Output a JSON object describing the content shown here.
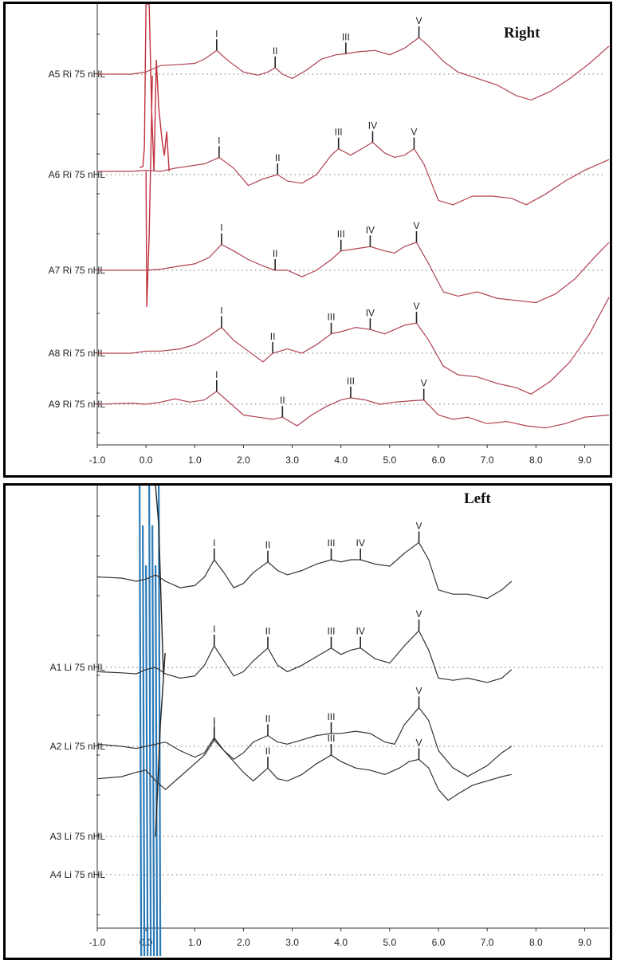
{
  "chart_data": [
    {
      "type": "line",
      "title": "Right",
      "xlim": [
        -1.0,
        9.5
      ],
      "xticks": [
        "-1.0",
        "0.0",
        "1.0",
        "2.0",
        "3.0",
        "4.0",
        "5.0",
        "6.0",
        "7.0",
        "8.0",
        "9.0"
      ],
      "trace_color": "#b04050",
      "artifact_color": "#c0303c",
      "series": [
        {
          "name": "A5 Ri 75 nHL",
          "x": [
            -1.0,
            -0.3,
            0.0,
            0.3,
            0.7,
            1.0,
            1.2,
            1.45,
            1.7,
            2.0,
            2.3,
            2.5,
            2.65,
            2.8,
            3.0,
            3.3,
            3.6,
            3.9,
            4.1,
            4.4,
            4.7,
            5.0,
            5.3,
            5.6,
            5.8,
            6.1,
            6.4,
            6.8,
            7.2,
            7.6,
            7.9,
            8.3,
            8.7,
            9.1,
            9.5
          ],
          "y": [
            0.0,
            0.0,
            0.1,
            0.4,
            0.45,
            0.5,
            0.7,
            1.1,
            0.6,
            0.1,
            -0.05,
            0.1,
            0.3,
            0.0,
            -0.2,
            0.2,
            0.7,
            0.9,
            0.95,
            1.05,
            1.1,
            0.9,
            1.2,
            1.7,
            1.3,
            0.6,
            0.1,
            -0.2,
            -0.5,
            -1.0,
            -1.2,
            -0.8,
            -0.2,
            0.5,
            1.3
          ]
        },
        {
          "name": "A6 Ri 75 nHL",
          "x": [
            -1.0,
            -0.3,
            0.0,
            0.3,
            0.6,
            0.9,
            1.2,
            1.5,
            1.8,
            2.1,
            2.4,
            2.7,
            2.9,
            3.2,
            3.5,
            3.8,
            3.95,
            4.2,
            4.5,
            4.65,
            4.9,
            5.1,
            5.3,
            5.5,
            5.7,
            6.0,
            6.3,
            6.7,
            7.1,
            7.5,
            7.8,
            8.2,
            8.6,
            9.0,
            9.5
          ],
          "y": [
            0.15,
            0.15,
            0.2,
            0.15,
            0.3,
            0.4,
            0.5,
            0.8,
            0.3,
            -0.5,
            -0.2,
            0.0,
            -0.3,
            -0.4,
            0.0,
            0.9,
            1.2,
            0.9,
            1.3,
            1.5,
            1.0,
            0.8,
            0.9,
            1.2,
            0.5,
            -1.2,
            -1.4,
            -1.0,
            -1.0,
            -1.1,
            -1.4,
            -0.9,
            -0.3,
            0.2,
            0.7
          ]
        },
        {
          "name": "A7 Ri 75 nHL",
          "x": [
            -1.0,
            -0.3,
            0.0,
            0.3,
            0.7,
            1.0,
            1.3,
            1.55,
            1.8,
            2.1,
            2.4,
            2.65,
            2.9,
            3.2,
            3.5,
            3.8,
            4.0,
            4.3,
            4.6,
            4.9,
            5.1,
            5.3,
            5.55,
            5.8,
            6.1,
            6.4,
            6.8,
            7.2,
            7.6,
            8.0,
            8.4,
            8.8,
            9.2,
            9.5
          ],
          "y": [
            0.0,
            0.0,
            0.0,
            0.05,
            0.2,
            0.3,
            0.6,
            1.2,
            0.9,
            0.5,
            0.2,
            0.0,
            0.0,
            -0.3,
            0.0,
            0.5,
            0.9,
            1.0,
            1.1,
            0.9,
            0.8,
            1.1,
            1.3,
            0.3,
            -1.0,
            -1.2,
            -1.0,
            -1.3,
            -1.4,
            -1.5,
            -1.1,
            -0.4,
            0.6,
            1.3
          ]
        },
        {
          "name": "A8 Ri 75 nHL",
          "x": [
            -1.0,
            -0.3,
            0.0,
            0.3,
            0.7,
            1.0,
            1.3,
            1.55,
            1.8,
            2.1,
            2.4,
            2.6,
            2.9,
            3.2,
            3.5,
            3.8,
            4.0,
            4.3,
            4.6,
            4.9,
            5.1,
            5.3,
            5.55,
            5.8,
            6.1,
            6.4,
            6.8,
            7.2,
            7.6,
            7.9,
            8.3,
            8.7,
            9.1,
            9.5
          ],
          "y": [
            0.0,
            0.0,
            0.1,
            0.1,
            0.2,
            0.4,
            0.8,
            1.2,
            0.6,
            0.1,
            -0.4,
            0.0,
            0.2,
            0.0,
            0.4,
            0.9,
            1.0,
            1.2,
            1.1,
            0.9,
            1.1,
            1.3,
            1.4,
            0.6,
            -0.6,
            -1.0,
            -1.1,
            -1.4,
            -1.6,
            -1.9,
            -1.3,
            -0.4,
            0.9,
            2.6
          ]
        },
        {
          "name": "A9 Ri 75 nHL",
          "x": [
            -1.0,
            -0.3,
            0.0,
            0.3,
            0.6,
            0.9,
            1.2,
            1.45,
            1.7,
            2.0,
            2.3,
            2.6,
            2.8,
            3.1,
            3.4,
            3.7,
            4.0,
            4.2,
            4.5,
            4.8,
            5.1,
            5.4,
            5.7,
            6.0,
            6.3,
            6.6,
            7.0,
            7.4,
            7.8,
            8.2,
            8.6,
            9.0,
            9.5
          ],
          "y": [
            0.0,
            0.05,
            0.0,
            0.1,
            0.25,
            0.1,
            0.2,
            0.6,
            0.1,
            -0.5,
            -0.6,
            -0.7,
            -0.6,
            -1.0,
            -0.5,
            -0.1,
            0.2,
            0.3,
            0.2,
            0.0,
            0.1,
            0.15,
            0.2,
            -0.5,
            -0.7,
            -0.6,
            -0.9,
            -0.8,
            -1.0,
            -1.1,
            -0.9,
            -0.6,
            -0.5
          ]
        }
      ],
      "peaks": [
        {
          "series": 0,
          "labels": [
            [
              "I",
              1.45
            ],
            [
              "II",
              2.65
            ],
            [
              "III",
              4.1
            ],
            [
              "V",
              5.6
            ]
          ]
        },
        {
          "series": 1,
          "labels": [
            [
              "I",
              1.5
            ],
            [
              "II",
              2.7
            ],
            [
              "III",
              3.95
            ],
            [
              "IV",
              4.65
            ],
            [
              "V",
              5.5
            ]
          ]
        },
        {
          "series": 2,
          "labels": [
            [
              "I",
              1.55
            ],
            [
              "II",
              2.65
            ],
            [
              "III",
              4.0
            ],
            [
              "IV",
              4.6
            ],
            [
              "V",
              5.55
            ]
          ]
        },
        {
          "series": 3,
          "labels": [
            [
              "I",
              1.55
            ],
            [
              "II",
              2.6
            ],
            [
              "III",
              3.8
            ],
            [
              "IV",
              4.6
            ],
            [
              "V",
              5.55
            ]
          ]
        },
        {
          "series": 4,
          "labels": [
            [
              "I",
              1.45
            ],
            [
              "II",
              2.8
            ],
            [
              "III",
              4.2
            ],
            [
              "V",
              5.7
            ]
          ]
        }
      ]
    },
    {
      "type": "line",
      "title": "Left",
      "xlim": [
        -1.0,
        9.5
      ],
      "xticks": [
        "-1.0",
        "0.0",
        "1.0",
        "2.0",
        "3.0",
        "4.0",
        "5.0",
        "6.0",
        "7.0",
        "8.0",
        "9.0"
      ],
      "trace_color": "#333333",
      "artifact_color": "#2a7ab8",
      "series": [
        {
          "name": "",
          "x": [
            -1.0,
            -0.5,
            -0.2,
            0.0,
            0.2,
            0.4,
            0.7,
            1.0,
            1.2,
            1.4,
            1.6,
            1.8,
            2.0,
            2.2,
            2.5,
            2.7,
            2.9,
            3.2,
            3.5,
            3.8,
            4.0,
            4.2,
            4.4,
            4.7,
            5.0,
            5.3,
            5.6,
            5.8,
            6.0,
            6.3,
            6.6,
            7.0,
            7.3,
            7.5
          ],
          "y": [
            0.2,
            0.15,
            0.0,
            0.1,
            0.3,
            0.0,
            -0.3,
            -0.2,
            0.2,
            1.0,
            0.4,
            -0.3,
            -0.1,
            0.4,
            0.9,
            0.5,
            0.3,
            0.5,
            0.8,
            1.0,
            0.9,
            1.0,
            1.0,
            0.8,
            0.7,
            1.3,
            1.8,
            1.0,
            -0.4,
            -0.6,
            -0.6,
            -0.8,
            -0.4,
            0.0
          ]
        },
        {
          "name": "A1 Li 75 nHL",
          "x": [
            -1.0,
            -0.5,
            -0.2,
            0.0,
            0.2,
            0.4,
            0.7,
            1.0,
            1.2,
            1.4,
            1.6,
            1.8,
            2.0,
            2.2,
            2.5,
            2.7,
            2.9,
            3.2,
            3.5,
            3.8,
            4.0,
            4.2,
            4.4,
            4.7,
            5.0,
            5.3,
            5.6,
            5.8,
            6.0,
            6.3,
            6.6,
            7.0,
            7.3,
            7.5
          ],
          "y": [
            -0.2,
            -0.25,
            -0.3,
            -0.1,
            0.0,
            -0.3,
            -0.5,
            -0.4,
            0.1,
            1.0,
            0.3,
            -0.4,
            -0.2,
            0.3,
            0.9,
            0.1,
            -0.2,
            0.1,
            0.5,
            0.9,
            0.6,
            0.8,
            0.9,
            0.4,
            0.2,
            1.0,
            1.7,
            0.8,
            -0.5,
            -0.6,
            -0.5,
            -0.7,
            -0.5,
            -0.1
          ]
        },
        {
          "name": "A2 Li 75 nHL",
          "x": [
            -1.0,
            -0.5,
            -0.2,
            0.0,
            0.2,
            0.4,
            0.7,
            1.0,
            1.2,
            1.4,
            1.6,
            1.8,
            2.0,
            2.2,
            2.5,
            2.7,
            2.9,
            3.2,
            3.5,
            3.8,
            4.0,
            4.3,
            4.6,
            4.9,
            5.1,
            5.3,
            5.6,
            5.8,
            6.0,
            6.3,
            6.6,
            7.0,
            7.3,
            7.5
          ],
          "y": [
            0.1,
            0.0,
            -0.1,
            0.0,
            0.1,
            0.2,
            -0.2,
            -0.5,
            -0.3,
            0.4,
            -0.2,
            -0.6,
            -0.3,
            0.2,
            0.5,
            0.2,
            0.1,
            0.3,
            0.5,
            0.6,
            0.6,
            0.7,
            0.6,
            0.2,
            0.1,
            1.0,
            1.8,
            1.2,
            -0.2,
            -1.0,
            -1.4,
            -0.9,
            -0.3,
            0.0
          ]
        },
        {
          "name": "A3 Li 75 nHL",
          "x": [
            -1.0,
            -0.5,
            -0.2,
            0.0,
            0.2,
            0.4,
            0.7,
            1.0,
            1.2,
            1.4,
            1.6,
            1.8,
            2.0,
            2.2,
            2.5,
            2.7,
            2.9,
            3.2,
            3.5,
            3.8,
            4.0,
            4.3,
            4.6,
            4.9,
            5.2,
            5.4,
            5.6,
            5.8,
            6.0,
            6.2,
            6.4,
            6.7,
            7.0,
            7.3,
            7.5
          ],
          "y": [
            0.9,
            1.0,
            1.2,
            1.3,
            0.8,
            0.4,
            1.0,
            1.6,
            2.0,
            2.7,
            2.2,
            1.7,
            1.2,
            0.8,
            1.4,
            0.9,
            0.8,
            1.1,
            1.6,
            2.0,
            1.7,
            1.4,
            1.3,
            1.1,
            1.4,
            1.7,
            1.8,
            1.4,
            0.4,
            -0.1,
            0.2,
            0.6,
            0.8,
            1.0,
            1.1
          ]
        },
        {
          "name": "A4 Li 75 nHL",
          "x": [],
          "y": []
        }
      ],
      "peaks": [
        {
          "series": 0,
          "labels": [
            [
              "I",
              1.4
            ],
            [
              "II",
              2.5
            ],
            [
              "III",
              3.8
            ],
            [
              "IV",
              4.4
            ],
            [
              "V",
              5.6
            ]
          ]
        },
        {
          "series": 1,
          "labels": [
            [
              "I",
              1.4
            ],
            [
              "II",
              2.5
            ],
            [
              "III",
              3.8
            ],
            [
              "IV",
              4.4
            ],
            [
              "V",
              5.6
            ]
          ]
        },
        {
          "series": 2,
          "labels": [
            [
              "I",
              1.4
            ],
            [
              "II",
              2.5
            ],
            [
              "III",
              3.8
            ],
            [
              "V",
              5.6
            ]
          ]
        },
        {
          "series": 3,
          "labels": [
            [
              "I",
              1.4
            ],
            [
              "II",
              2.5
            ],
            [
              "III",
              3.8
            ],
            [
              "V",
              5.6
            ]
          ]
        }
      ]
    }
  ]
}
